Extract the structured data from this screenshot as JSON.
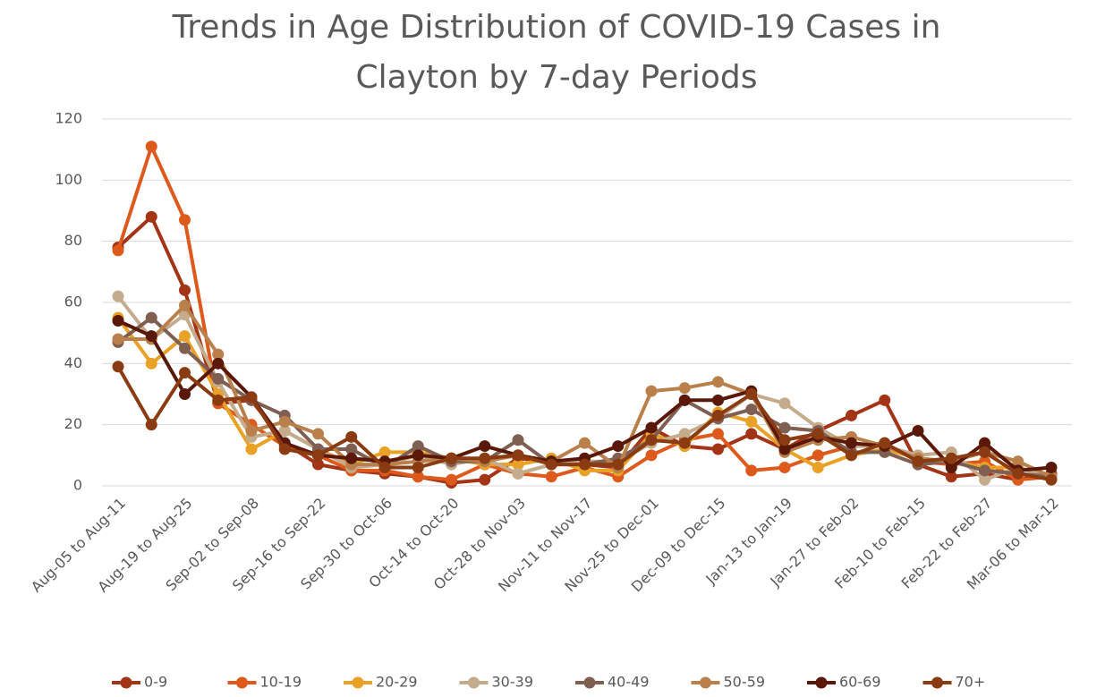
{
  "chart_data": {
    "type": "line",
    "title": [
      "Trends in Age Distribution of COVID-19 Cases in",
      "Clayton by 7-day Periods"
    ],
    "categories": [
      "Aug-05 to Aug-11",
      null,
      "Aug-19 to Aug-25",
      null,
      "Sep-02 to Sep-08",
      null,
      "Sep-16 to Sep-22",
      null,
      "Sep-30 to Oct-06",
      null,
      "Oct-14 to Oct-20",
      null,
      "Oct-28 to Nov-03",
      null,
      "Nov-11 to Nov-17",
      null,
      "Nov-25 to Dec-01",
      null,
      "Dec-09 to Dec-15",
      null,
      "Jan-13 to Jan-19",
      null,
      "Jan-27 to Feb-02",
      null,
      "Feb-10 to Feb-15",
      null,
      "Feb-22 to Feb-27",
      null,
      "Mar-06 to Mar-12"
    ],
    "series": [
      {
        "name": "0-9",
        "color": "#a33416",
        "values": [
          78,
          88,
          64,
          27,
          28,
          14,
          7,
          5,
          4,
          3,
          1,
          2,
          9,
          8,
          7,
          6,
          19,
          13,
          12,
          17,
          12,
          18,
          23,
          28,
          7,
          3,
          4,
          2,
          4
        ]
      },
      {
        "name": "10-19",
        "color": "#de5a1c",
        "values": [
          77,
          111,
          87,
          27,
          20,
          13,
          10,
          5,
          5,
          3,
          2,
          7,
          4,
          3,
          6,
          3,
          10,
          15,
          17,
          5,
          6,
          10,
          13,
          14,
          8,
          7,
          8,
          2,
          3
        ]
      },
      {
        "name": "20-29",
        "color": "#e9a126",
        "values": [
          55,
          40,
          49,
          30,
          12,
          18,
          12,
          7,
          11,
          11,
          9,
          7,
          7,
          9,
          5,
          5,
          17,
          13,
          24,
          21,
          12,
          6,
          10,
          12,
          9,
          8,
          6,
          6,
          3
        ]
      },
      {
        "name": "30-39",
        "color": "#c3ab8c",
        "values": [
          62,
          48,
          56,
          34,
          16,
          18,
          12,
          6,
          7,
          10,
          7,
          9,
          4,
          7,
          8,
          8,
          14,
          17,
          22,
          30,
          27,
          19,
          13,
          13,
          10,
          11,
          2,
          6,
          3
        ]
      },
      {
        "name": "40-49",
        "color": "#7e5f52",
        "values": [
          47,
          55,
          45,
          35,
          28,
          23,
          12,
          12,
          6,
          13,
          8,
          8,
          15,
          7,
          7,
          9,
          15,
          28,
          22,
          25,
          19,
          18,
          11,
          11,
          7,
          8,
          5,
          4,
          3
        ]
      },
      {
        "name": "50-59",
        "color": "#b9804b",
        "values": [
          48,
          48,
          59,
          43,
          18,
          21,
          17,
          7,
          7,
          8,
          9,
          8,
          10,
          8,
          14,
          6,
          31,
          32,
          34,
          30,
          11,
          15,
          16,
          13,
          9,
          8,
          11,
          8,
          3
        ]
      },
      {
        "name": "60-69",
        "color": "#5a1808",
        "values": [
          54,
          49,
          30,
          40,
          29,
          14,
          10,
          9,
          8,
          10,
          9,
          13,
          10,
          8,
          9,
          13,
          19,
          28,
          28,
          31,
          12,
          16,
          14,
          13,
          18,
          6,
          14,
          5,
          6
        ]
      },
      {
        "name": "70+",
        "color": "#8a3b12",
        "values": [
          39,
          20,
          37,
          28,
          29,
          12,
          10,
          16,
          6,
          6,
          9,
          9,
          10,
          7,
          7,
          7,
          15,
          14,
          23,
          30,
          15,
          17,
          10,
          14,
          8,
          9,
          11,
          4,
          2
        ]
      }
    ],
    "ylim": [
      0,
      120
    ],
    "yticks": [
      0,
      20,
      40,
      60,
      80,
      100,
      120
    ],
    "grid": true,
    "legend": "bottom"
  }
}
